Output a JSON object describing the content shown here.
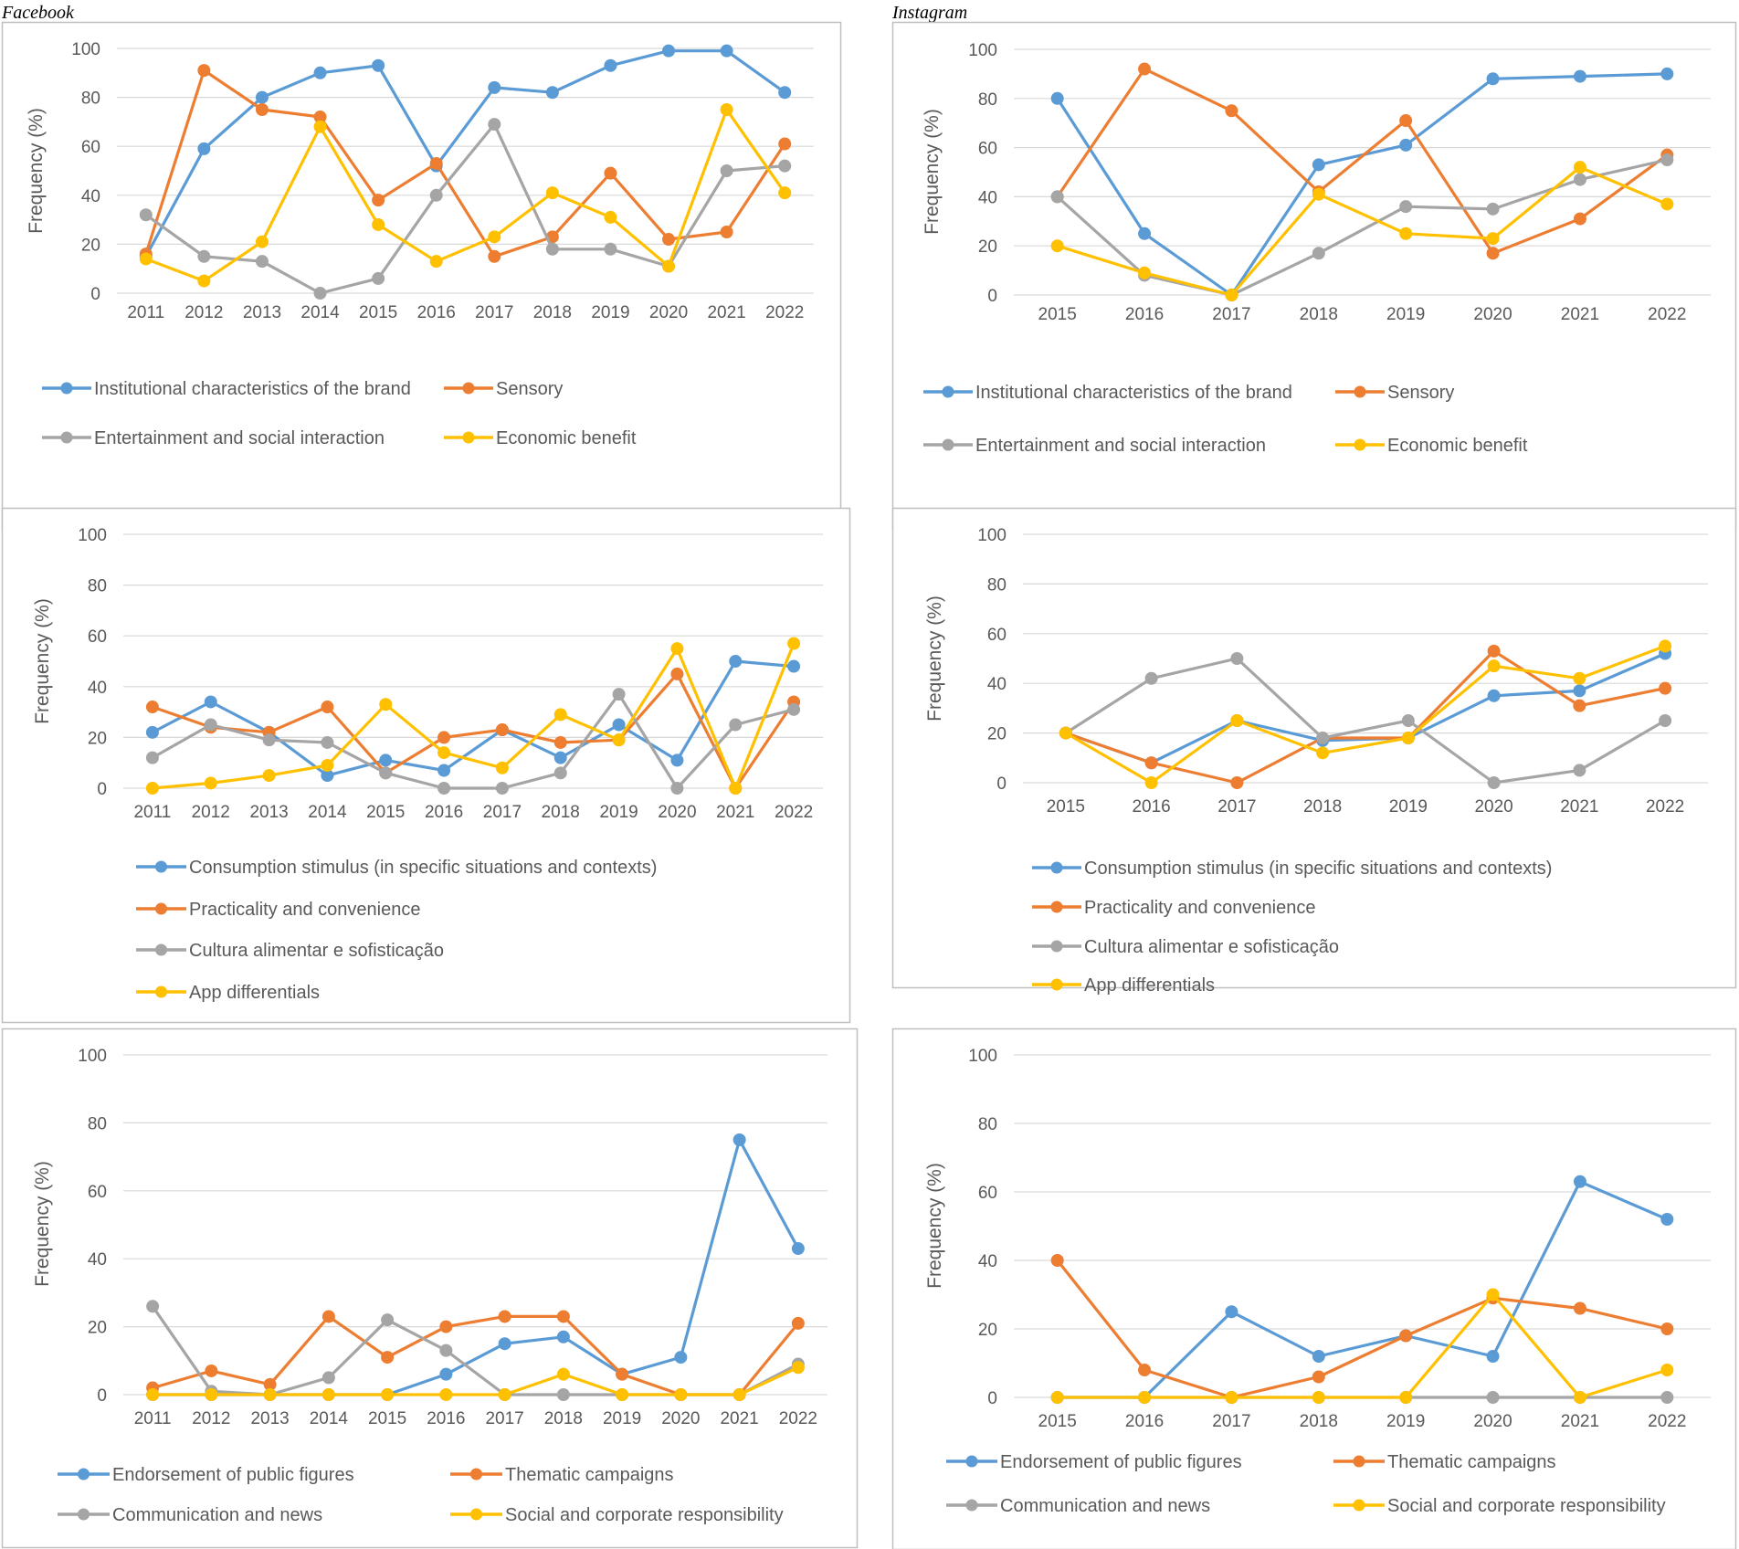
{
  "headers": {
    "left": "Facebook",
    "right": "Instagram"
  },
  "colors": {
    "blue": "#5B9BD5",
    "orange": "#ED7D31",
    "gray": "#A5A5A5",
    "yellow": "#FFC000",
    "grid": "#D9D9D9",
    "frame": "#BFBFBF"
  },
  "chart_data": [
    {
      "type": "line",
      "platform": "Facebook",
      "ylabel": "Frequency (%)",
      "ylim": [
        0,
        100
      ],
      "yticks": [
        0,
        20,
        40,
        60,
        80,
        100
      ],
      "categories": [
        "2011",
        "2012",
        "2013",
        "2014",
        "2015",
        "2016",
        "2017",
        "2018",
        "2019",
        "2020",
        "2021",
        "2022"
      ],
      "legend_layout": "grid2",
      "series": [
        {
          "name": "Institutional characteristics of the brand",
          "color": "blue",
          "values": [
            15,
            59,
            80,
            90,
            93,
            52,
            84,
            82,
            93,
            99,
            99,
            82
          ]
        },
        {
          "name": "Sensory",
          "color": "orange",
          "values": [
            16,
            91,
            75,
            72,
            38,
            53,
            15,
            23,
            49,
            22,
            25,
            61
          ]
        },
        {
          "name": "Entertainment and social interaction",
          "color": "gray",
          "values": [
            32,
            15,
            13,
            0,
            6,
            40,
            69,
            18,
            18,
            11,
            50,
            52
          ]
        },
        {
          "name": "Economic benefit",
          "color": "yellow",
          "values": [
            14,
            5,
            21,
            68,
            28,
            13,
            23,
            41,
            31,
            11,
            75,
            41
          ]
        }
      ]
    },
    {
      "type": "line",
      "platform": "Instagram",
      "ylabel": "Frequency (%)",
      "ylim": [
        0,
        100
      ],
      "yticks": [
        0,
        20,
        40,
        60,
        80,
        100
      ],
      "categories": [
        "2015",
        "2016",
        "2017",
        "2018",
        "2019",
        "2020",
        "2021",
        "2022"
      ],
      "legend_layout": "grid2",
      "series": [
        {
          "name": "Institutional characteristics of the brand",
          "color": "blue",
          "values": [
            80,
            25,
            0,
            53,
            61,
            88,
            89,
            90
          ]
        },
        {
          "name": "Sensory",
          "color": "orange",
          "values": [
            40,
            92,
            75,
            42,
            71,
            17,
            31,
            57
          ]
        },
        {
          "name": "Entertainment and social interaction",
          "color": "gray",
          "values": [
            40,
            8,
            0,
            17,
            36,
            35,
            47,
            55
          ]
        },
        {
          "name": "Economic benefit",
          "color": "yellow",
          "values": [
            20,
            9,
            0,
            41,
            25,
            23,
            52,
            37
          ]
        }
      ]
    },
    {
      "type": "line",
      "platform": "Facebook",
      "ylabel": "Frequency (%)",
      "ylim": [
        0,
        100
      ],
      "yticks": [
        0,
        20,
        40,
        60,
        80,
        100
      ],
      "categories": [
        "2011",
        "2012",
        "2013",
        "2014",
        "2015",
        "2016",
        "2017",
        "2018",
        "2019",
        "2020",
        "2021",
        "2022"
      ],
      "legend_layout": "stack",
      "series": [
        {
          "name": "Consumption stimulus (in specific situations and contexts)",
          "color": "blue",
          "values": [
            22,
            34,
            22,
            5,
            11,
            7,
            23,
            12,
            25,
            11,
            50,
            48
          ]
        },
        {
          "name": "Practicality and convenience",
          "color": "orange",
          "values": [
            32,
            24,
            22,
            32,
            6,
            20,
            23,
            18,
            19,
            45,
            0,
            34
          ]
        },
        {
          "name": "Cultura alimentar e sofisticação",
          "color": "gray",
          "values": [
            12,
            25,
            19,
            18,
            6,
            0,
            0,
            6,
            37,
            0,
            25,
            31
          ]
        },
        {
          "name": "App differentials",
          "color": "yellow",
          "values": [
            0,
            2,
            5,
            9,
            33,
            14,
            8,
            29,
            19,
            55,
            0,
            57
          ]
        }
      ]
    },
    {
      "type": "line",
      "platform": "Instagram",
      "ylabel": "Frequency (%)",
      "ylim": [
        0,
        100
      ],
      "yticks": [
        0,
        20,
        40,
        60,
        80,
        100
      ],
      "categories": [
        "2015",
        "2016",
        "2017",
        "2018",
        "2019",
        "2020",
        "2021",
        "2022"
      ],
      "legend_layout": "stack",
      "series": [
        {
          "name": "Consumption stimulus (in specific situations and contexts)",
          "color": "blue",
          "values": [
            20,
            8,
            25,
            17,
            18,
            35,
            37,
            52
          ]
        },
        {
          "name": "Practicality and convenience",
          "color": "orange",
          "values": [
            20,
            8,
            0,
            18,
            18,
            53,
            31,
            38
          ]
        },
        {
          "name": "Cultura alimentar e sofisticação",
          "color": "gray",
          "values": [
            20,
            42,
            50,
            18,
            25,
            0,
            5,
            25
          ]
        },
        {
          "name": "App differentials",
          "color": "yellow",
          "values": [
            20,
            0,
            25,
            12,
            18,
            47,
            42,
            55
          ]
        }
      ]
    },
    {
      "type": "line",
      "platform": "Facebook",
      "ylabel": "Frequency (%)",
      "ylim": [
        0,
        100
      ],
      "yticks": [
        0,
        20,
        40,
        60,
        80,
        100
      ],
      "categories": [
        "2011",
        "2012",
        "2013",
        "2014",
        "2015",
        "2016",
        "2017",
        "2018",
        "2019",
        "2020",
        "2021",
        "2022"
      ],
      "legend_layout": "grid2",
      "series": [
        {
          "name": "Endorsement of public figures",
          "color": "blue",
          "values": [
            0,
            0,
            0,
            0,
            0,
            6,
            15,
            17,
            6,
            11,
            75,
            43
          ]
        },
        {
          "name": "Thematic campaigns",
          "color": "orange",
          "values": [
            2,
            7,
            3,
            23,
            11,
            20,
            23,
            23,
            6,
            0,
            0,
            21
          ]
        },
        {
          "name": "Communication and news",
          "color": "gray",
          "values": [
            26,
            1,
            0,
            5,
            22,
            13,
            0,
            0,
            0,
            0,
            0,
            9
          ]
        },
        {
          "name": "Social and corporate responsibility",
          "color": "yellow",
          "values": [
            0,
            0,
            0,
            0,
            0,
            0,
            0,
            6,
            0,
            0,
            0,
            8
          ]
        }
      ]
    },
    {
      "type": "line",
      "platform": "Instagram",
      "ylabel": "Frequency (%)",
      "ylim": [
        0,
        100
      ],
      "yticks": [
        0,
        20,
        40,
        60,
        80,
        100
      ],
      "categories": [
        "2015",
        "2016",
        "2017",
        "2018",
        "2019",
        "2020",
        "2021",
        "2022"
      ],
      "legend_layout": "grid2",
      "series": [
        {
          "name": "Endorsement of public figures",
          "color": "blue",
          "values": [
            0,
            0,
            25,
            12,
            18,
            12,
            63,
            52
          ]
        },
        {
          "name": "Thematic campaigns",
          "color": "orange",
          "values": [
            40,
            8,
            0,
            6,
            18,
            29,
            26,
            20
          ]
        },
        {
          "name": "Communication and news",
          "color": "gray",
          "values": [
            0,
            0,
            0,
            0,
            0,
            0,
            0,
            0
          ]
        },
        {
          "name": "Social and corporate responsibility",
          "color": "yellow",
          "values": [
            0,
            0,
            0,
            0,
            0,
            30,
            0,
            8
          ]
        }
      ]
    }
  ]
}
